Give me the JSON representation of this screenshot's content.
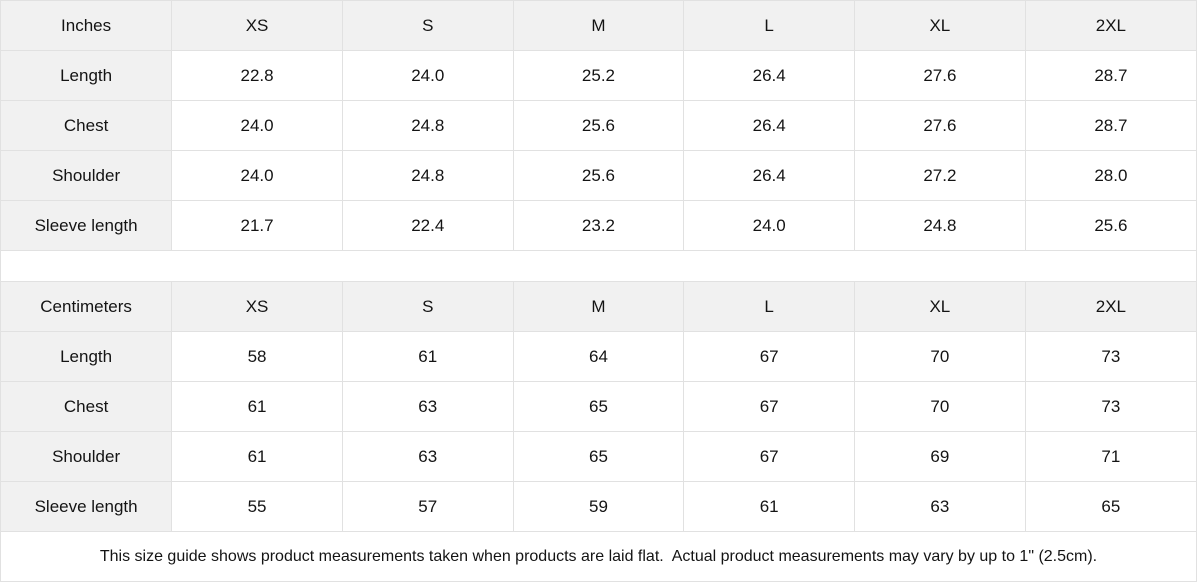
{
  "colors": {
    "header_bg": "#f1f1f1",
    "border": "#e1e1e1",
    "text": "#141414",
    "background": "#ffffff"
  },
  "inches_table": {
    "unit_label": "Inches",
    "size_columns": [
      "XS",
      "S",
      "M",
      "L",
      "XL",
      "2XL"
    ],
    "rows": [
      {
        "label": "Length",
        "values": [
          "22.8",
          "24.0",
          "25.2",
          "26.4",
          "27.6",
          "28.7"
        ]
      },
      {
        "label": "Chest",
        "values": [
          "24.0",
          "24.8",
          "25.6",
          "26.4",
          "27.6",
          "28.7"
        ]
      },
      {
        "label": "Shoulder",
        "values": [
          "24.0",
          "24.8",
          "25.6",
          "26.4",
          "27.2",
          "28.0"
        ]
      },
      {
        "label": "Sleeve length",
        "values": [
          "21.7",
          "22.4",
          "23.2",
          "24.0",
          "24.8",
          "25.6"
        ]
      }
    ]
  },
  "centimeters_table": {
    "unit_label": "Centimeters",
    "size_columns": [
      "XS",
      "S",
      "M",
      "L",
      "XL",
      "2XL"
    ],
    "rows": [
      {
        "label": "Length",
        "values": [
          "58",
          "61",
          "64",
          "67",
          "70",
          "73"
        ]
      },
      {
        "label": "Chest",
        "values": [
          "61",
          "63",
          "65",
          "67",
          "70",
          "73"
        ]
      },
      {
        "label": "Shoulder",
        "values": [
          "61",
          "63",
          "65",
          "67",
          "69",
          "71"
        ]
      },
      {
        "label": "Sleeve length",
        "values": [
          "55",
          "57",
          "59",
          "61",
          "63",
          "65"
        ]
      }
    ]
  },
  "footer": {
    "note": "This size guide shows product measurements taken when products are laid flat.  Actual product measurements may vary by up to 1\" (2.5cm)."
  }
}
